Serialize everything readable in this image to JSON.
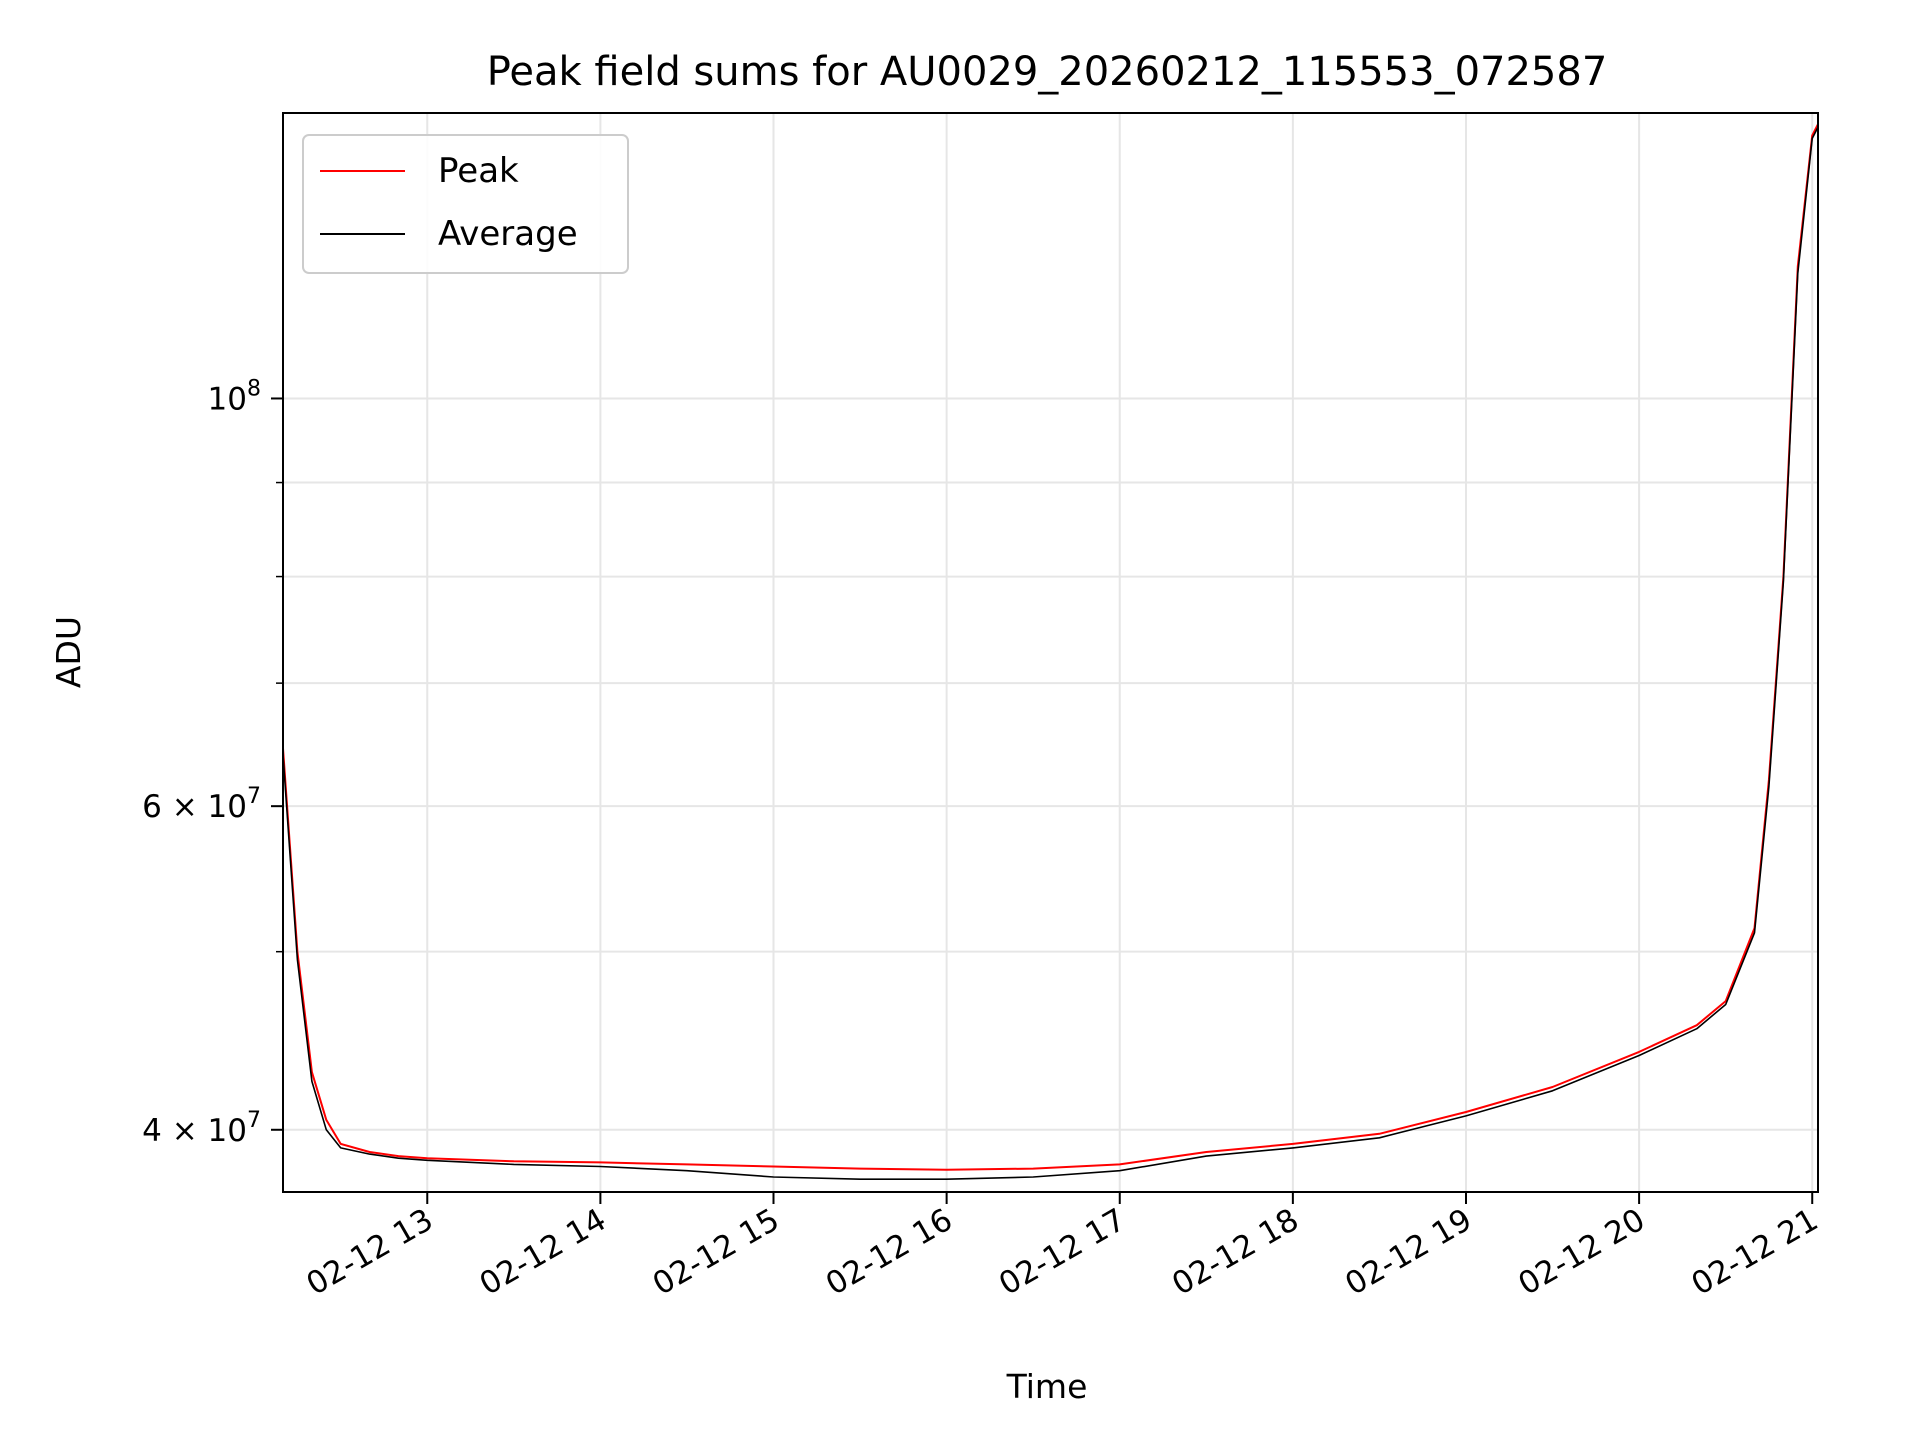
{
  "chart_data": {
    "type": "line",
    "title": "Peak field sums for AU0029_20260212_115553_072587",
    "xlabel": "Time",
    "ylabel": "ADU",
    "x_axis": {
      "scale": "time",
      "range": [
        "02-12 12:10",
        "02-12 21:02"
      ],
      "ticks": [
        {
          "value": "02-12 13:00",
          "label": "02-12 13"
        },
        {
          "value": "02-12 14:00",
          "label": "02-12 14"
        },
        {
          "value": "02-12 15:00",
          "label": "02-12 15"
        },
        {
          "value": "02-12 16:00",
          "label": "02-12 16"
        },
        {
          "value": "02-12 17:00",
          "label": "02-12 17"
        },
        {
          "value": "02-12 18:00",
          "label": "02-12 18"
        },
        {
          "value": "02-12 19:00",
          "label": "02-12 19"
        },
        {
          "value": "02-12 20:00",
          "label": "02-12 20"
        },
        {
          "value": "02-12 21:00",
          "label": "02-12 21"
        }
      ]
    },
    "y_axis": {
      "scale": "log",
      "range": [
        37000000,
        143000000
      ],
      "ticks": [
        {
          "value": 40000000,
          "base": "4 × 10",
          "exp": "7"
        },
        {
          "value": 60000000,
          "base": "6 × 10",
          "exp": "7"
        },
        {
          "value": 100000000,
          "base": "10",
          "exp": "8"
        }
      ],
      "minor_ticks": [
        50000000,
        70000000,
        80000000,
        90000000
      ]
    },
    "grid": true,
    "legend": {
      "position": "top-left",
      "entries": [
        "Peak",
        "Average"
      ]
    },
    "series": [
      {
        "name": "Peak",
        "color": "#ff0000",
        "x": [
          "02-12 12:10",
          "02-12 12:15",
          "02-12 12:20",
          "02-12 12:25",
          "02-12 12:30",
          "02-12 12:40",
          "02-12 12:50",
          "02-12 13:00",
          "02-12 13:30",
          "02-12 14:00",
          "02-12 14:30",
          "02-12 15:00",
          "02-12 15:30",
          "02-12 16:00",
          "02-12 16:30",
          "02-12 17:00",
          "02-12 17:30",
          "02-12 18:00",
          "02-12 18:30",
          "02-12 19:00",
          "02-12 19:30",
          "02-12 20:00",
          "02-12 20:20",
          "02-12 20:30",
          "02-12 20:40",
          "02-12 20:45",
          "02-12 20:50",
          "02-12 20:55",
          "02-12 21:00",
          "02-12 21:02"
        ],
        "y": [
          64500000,
          50000000,
          43000000,
          40500000,
          39300000,
          38900000,
          38700000,
          38600000,
          38450000,
          38400000,
          38300000,
          38200000,
          38100000,
          38050000,
          38100000,
          38300000,
          38900000,
          39300000,
          39800000,
          40900000,
          42200000,
          44100000,
          45600000,
          47000000,
          51500000,
          62000000,
          80000000,
          118000000,
          139000000,
          141000000
        ]
      },
      {
        "name": "Average",
        "color": "#000000",
        "x": [
          "02-12 12:10",
          "02-12 12:15",
          "02-12 12:20",
          "02-12 12:25",
          "02-12 12:30",
          "02-12 12:40",
          "02-12 12:50",
          "02-12 13:00",
          "02-12 13:30",
          "02-12 14:00",
          "02-12 14:30",
          "02-12 15:00",
          "02-12 15:30",
          "02-12 16:00",
          "02-12 16:30",
          "02-12 17:00",
          "02-12 17:30",
          "02-12 18:00",
          "02-12 18:30",
          "02-12 19:00",
          "02-12 19:30",
          "02-12 20:00",
          "02-12 20:20",
          "02-12 20:30",
          "02-12 20:40",
          "02-12 20:45",
          "02-12 20:50",
          "02-12 20:55",
          "02-12 21:00",
          "02-12 21:02"
        ],
        "y": [
          64000000,
          49500000,
          42500000,
          40000000,
          39100000,
          38800000,
          38600000,
          38500000,
          38300000,
          38200000,
          38000000,
          37700000,
          37600000,
          37600000,
          37700000,
          38000000,
          38700000,
          39100000,
          39600000,
          40700000,
          42000000,
          43900000,
          45400000,
          46800000,
          51200000,
          61500000,
          79500000,
          117000000,
          138500000,
          140500000
        ]
      }
    ]
  }
}
